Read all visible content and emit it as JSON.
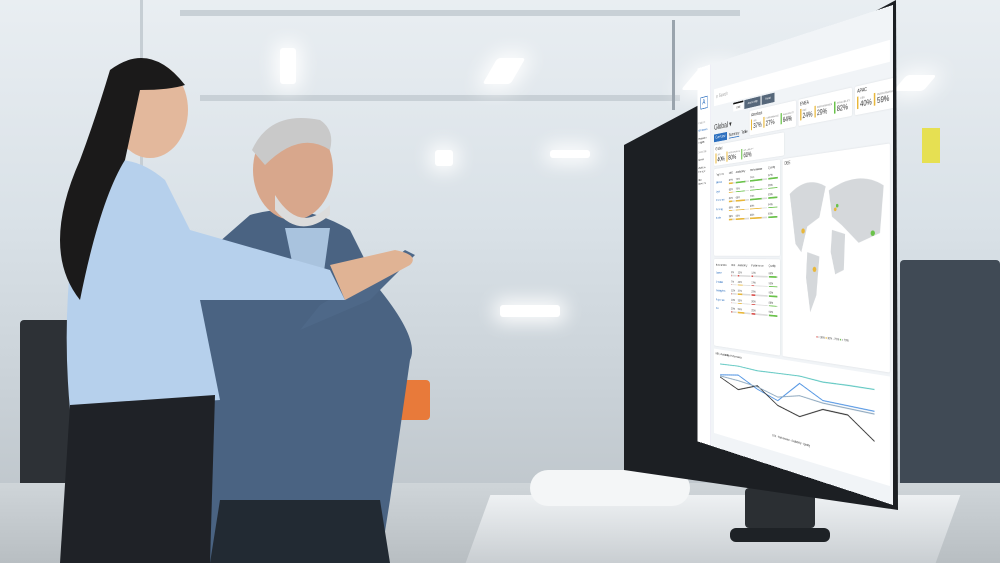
{
  "dashboard": {
    "search_placeholder": "Search",
    "tabs": [
      "OEE",
      "Availability",
      "Trend"
    ],
    "scope": "Global",
    "subtabs": {
      "button": "Overview",
      "summary": "Summary",
      "table": "Table"
    },
    "sidebar": {
      "section1": "ANALYZE",
      "items1": [
        "KPI Metrics",
        "Production Insights"
      ],
      "section2": "DIAGNOSE",
      "items2": [
        "Alarms",
        "Workflow Manager",
        "Run Downtime"
      ]
    },
    "kpi_labels": [
      "OEE",
      "PERFORMANCE",
      "AVAILABILITY"
    ],
    "regions": [
      {
        "name": "Global",
        "values": [
          "40%",
          "80%",
          "60%"
        ]
      },
      {
        "name": "Americas",
        "values": [
          "37%",
          "27%",
          "64%"
        ]
      },
      {
        "name": "EMEA",
        "values": [
          "24%",
          "29%",
          "82%"
        ]
      },
      {
        "name": "APAC",
        "values": [
          "40%",
          "59%",
          "64%"
        ]
      }
    ],
    "top_sites": {
      "headers": [
        "Top Sites",
        "OEE",
        "Availability",
        "Performance",
        "Quality"
      ],
      "rows": [
        [
          "Mexico",
          "67%",
          "72%",
          "74%",
          "97%"
        ],
        [
          "Lyon",
          "63%",
          "70%",
          "71%",
          "96%"
        ],
        [
          "Shenzhen",
          "61%",
          "68%",
          "70%",
          "95%"
        ],
        [
          "Penang",
          "60%",
          "66%",
          "69%",
          "94%"
        ],
        [
          "Austin",
          "58%",
          "65%",
          "68%",
          "93%"
        ]
      ]
    },
    "bottom_sites": {
      "headers": [
        "Bottom Sites",
        "OEE",
        "Availability",
        "Performance",
        "Quality"
      ],
      "rows": [
        [
          "Juarez",
          "3%",
          "12%",
          "12%",
          "89%"
        ],
        [
          "Dresden",
          "7%",
          "42%",
          "17%",
          "90%"
        ],
        [
          "Guangzhou",
          "12%",
          "37%",
          "23%",
          "92%"
        ],
        [
          "Rajasthan",
          "13%",
          "33%",
          "26%",
          "88%"
        ],
        [
          "Xia",
          "20%",
          "54%",
          "25%",
          "90%"
        ]
      ]
    },
    "map_title": "OEE",
    "map_legend": [
      "< 30%",
      "30% - 70%",
      "> 70%"
    ],
    "chart_title": "OEE, Availability, Performance",
    "chart_legend": [
      "OEE",
      "Performance",
      "Availability",
      "Quality"
    ],
    "colors": {
      "accent": "#2c6fbf",
      "good": "#6ac24a",
      "warn": "#e8b73a",
      "bad": "#d9534f"
    }
  },
  "chart_data": {
    "type": "line",
    "series": [
      {
        "name": "Quality",
        "values": [
          92,
          94,
          92,
          94,
          96,
          93,
          95,
          96
        ]
      },
      {
        "name": "Performance",
        "values": [
          72,
          78,
          60,
          48,
          84,
          64,
          64,
          64
        ]
      },
      {
        "name": "Availability",
        "values": [
          68,
          52,
          66,
          40,
          30,
          50,
          50,
          20
        ]
      },
      {
        "name": "OEE",
        "values": [
          70,
          68,
          64,
          54,
          64,
          60,
          60,
          60
        ]
      }
    ]
  }
}
